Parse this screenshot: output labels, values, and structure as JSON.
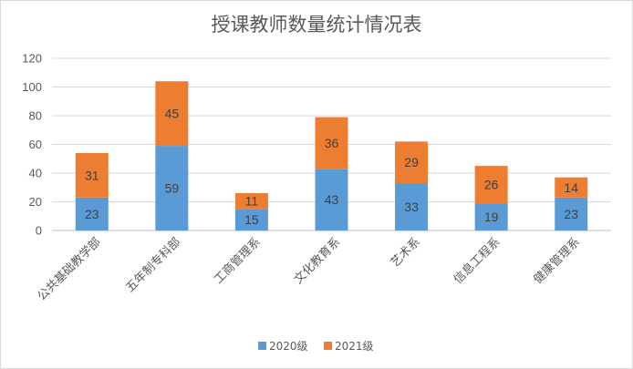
{
  "chart_data": {
    "type": "bar",
    "stacked": true,
    "title": "授课教师数量统计情况表",
    "categories": [
      "公共基础教学部",
      "五年制专科部",
      "工商管理系",
      "文化教育系",
      "艺术系",
      "信息工程系",
      "健康管理系"
    ],
    "series": [
      {
        "name": "2020级",
        "color": "#5b9bd5",
        "values": [
          23,
          59,
          15,
          43,
          33,
          19,
          23
        ]
      },
      {
        "name": "2021级",
        "color": "#ed7d31",
        "values": [
          31,
          45,
          11,
          36,
          29,
          26,
          14
        ]
      }
    ],
    "yticks": [
      0,
      20,
      40,
      60,
      80,
      100,
      120
    ],
    "ylim": [
      0,
      120
    ],
    "grid": true,
    "legend_position": "bottom"
  }
}
